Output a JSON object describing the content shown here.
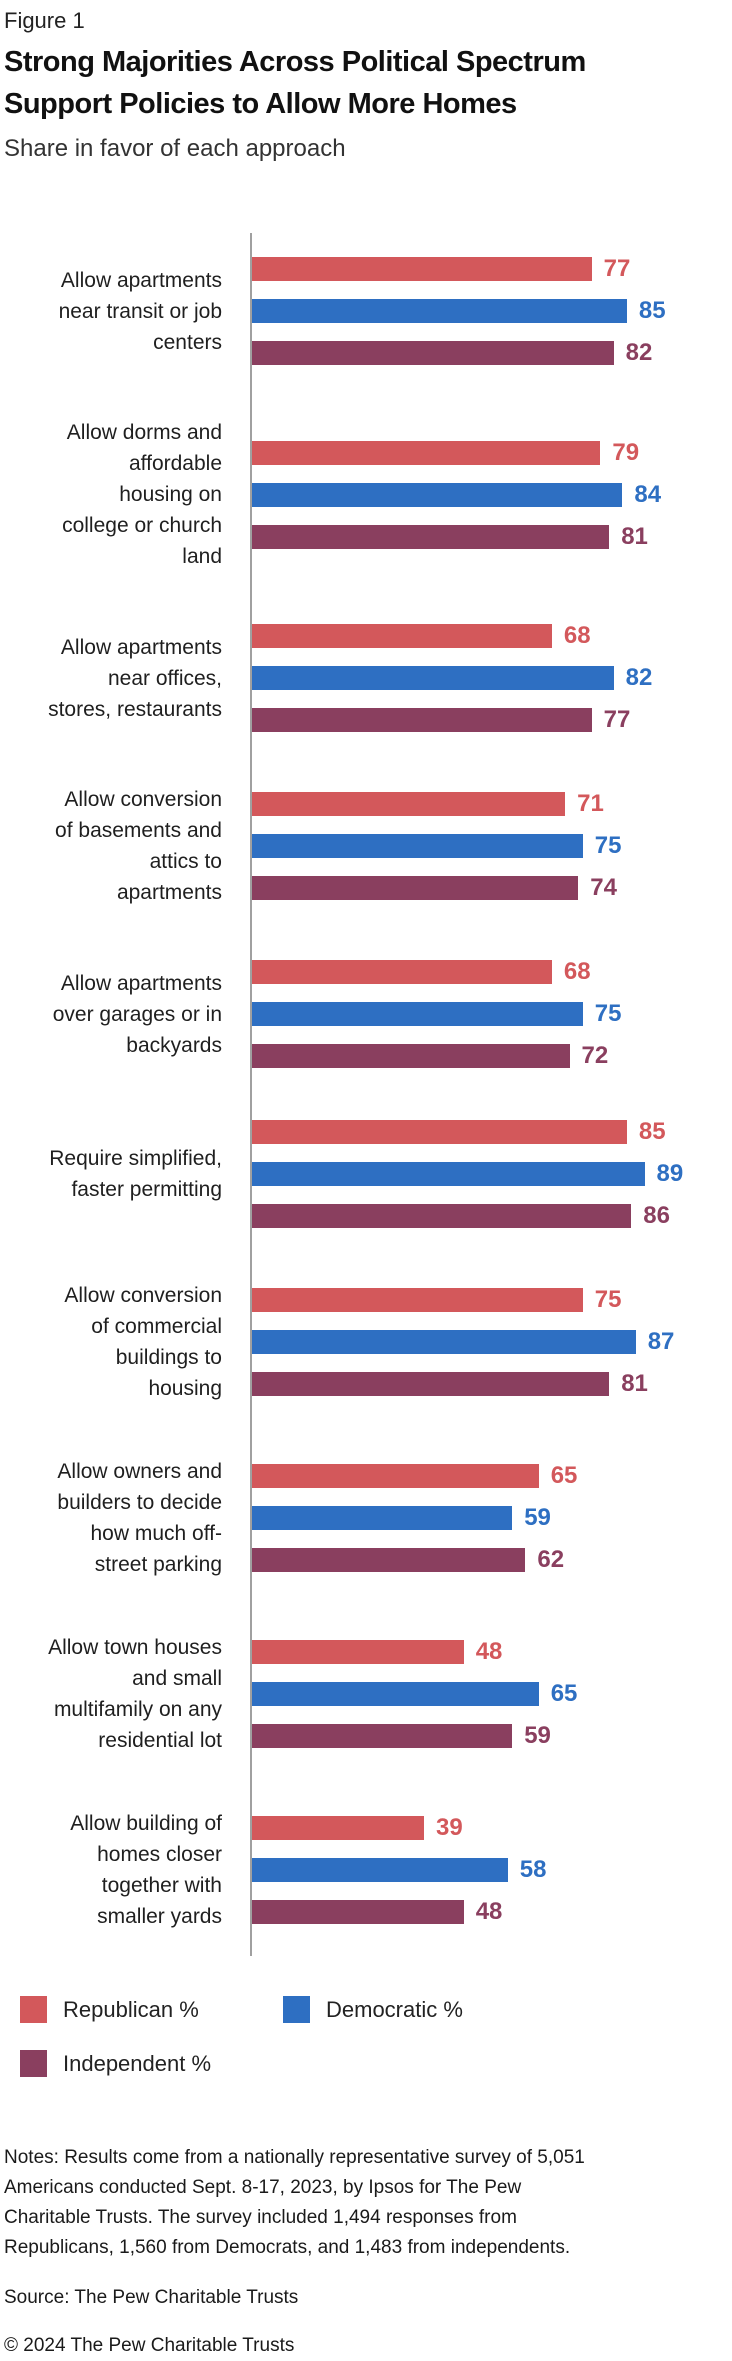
{
  "header": {
    "figure_label": "Figure 1",
    "title": "Strong Majorities Across Political Spectrum\nSupport Policies to Allow More Homes",
    "subtitle": "Share in favor of each approach"
  },
  "chart_data": {
    "type": "bar",
    "orientation": "horizontal",
    "title": "Strong Majorities Across Political Spectrum Support Policies to Allow More Homes",
    "subtitle": "Share in favor of each approach",
    "xlabel": "",
    "ylabel": "",
    "xlim": [
      0,
      100
    ],
    "grid": false,
    "value_labels": true,
    "legend_position": "bottom",
    "axis_color": "#a0a0a0",
    "categories": [
      "Allow apartments\nnear transit or job\ncenters",
      "Allow dorms and\naffordable\nhousing on\ncollege or church\nland",
      "Allow apartments\nnear offices,\nstores, restaurants",
      "Allow conversion\nof basements and\nattics to\napartments",
      "Allow apartments\nover garages or in\nbackyards",
      "Require simplified,\nfaster permitting",
      "Allow conversion\nof commercial\nbuildings to\nhousing",
      "Allow owners and\nbuilders to decide\nhow much off-\nstreet parking",
      "Allow town houses\nand small\nmultifamily on any\nresidential lot",
      "Allow building of\nhomes closer\ntogether with\nsmaller yards"
    ],
    "series": [
      {
        "name": "Republican %",
        "color": "#d3585b",
        "values": [
          77,
          79,
          68,
          71,
          68,
          85,
          75,
          65,
          48,
          39
        ]
      },
      {
        "name": "Democratic %",
        "color": "#2e6fc2",
        "values": [
          85,
          84,
          82,
          75,
          75,
          89,
          87,
          59,
          65,
          58
        ]
      },
      {
        "name": "Independent %",
        "color": "#8a3f5f",
        "values": [
          82,
          81,
          77,
          74,
          72,
          86,
          81,
          62,
          59,
          48
        ]
      }
    ]
  },
  "legend": {
    "items": [
      {
        "label": "Republican %",
        "color": "#d3585b"
      },
      {
        "label": "Democratic %",
        "color": "#2e6fc2"
      },
      {
        "label": "Independent %",
        "color": "#8a3f5f"
      }
    ]
  },
  "footer": {
    "notes": "Notes: Results come from a nationally representative survey of 5,051\nAmericans conducted Sept. 8-17, 2023, by Ipsos for The Pew\nCharitable Trusts. The survey included 1,494 responses from\nRepublicans, 1,560 from Democrats, and 1,483 from independents.",
    "source": "Source: The Pew Charitable Trusts",
    "copyright": "© 2024 The Pew Charitable Trusts"
  }
}
